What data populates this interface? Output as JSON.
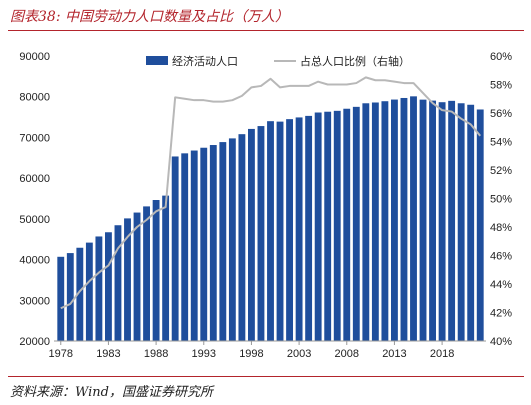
{
  "figure": {
    "title": "图表38:  中国劳动力人口数量及占比（万人）",
    "source": "资料来源：Wind，国盛证券研究所"
  },
  "colors": {
    "bar": "#1f4e9c",
    "line": "#b8b8b8",
    "accent": "#b3242c"
  },
  "chart_data": {
    "type": "bar",
    "x": [
      1978,
      1979,
      1980,
      1981,
      1982,
      1983,
      1984,
      1985,
      1986,
      1987,
      1988,
      1989,
      1990,
      1991,
      1992,
      1993,
      1994,
      1995,
      1996,
      1997,
      1998,
      1999,
      2000,
      2001,
      2002,
      2003,
      2004,
      2005,
      2006,
      2007,
      2008,
      2009,
      2010,
      2011,
      2012,
      2013,
      2014,
      2015,
      2016,
      2017,
      2018,
      2019,
      2020,
      2021,
      2022
    ],
    "x_tick_labels": [
      "1978",
      "1983",
      "1988",
      "1993",
      "1998",
      "2003",
      "2008",
      "2013",
      "2018"
    ],
    "x_tick_values": [
      1978,
      1983,
      1988,
      1993,
      1998,
      2003,
      2008,
      2013,
      2018
    ],
    "y_left_ticks": [
      "20000",
      "30000",
      "40000",
      "50000",
      "60000",
      "70000",
      "80000",
      "90000"
    ],
    "y_left_tick_values": [
      20000,
      30000,
      40000,
      50000,
      60000,
      70000,
      80000,
      90000
    ],
    "ylim_left": [
      20000,
      90000
    ],
    "y_right_ticks": [
      "40%",
      "42%",
      "44%",
      "46%",
      "48%",
      "50%",
      "52%",
      "54%",
      "56%",
      "58%",
      "60%"
    ],
    "y_right_tick_values": [
      40,
      42,
      44,
      46,
      48,
      50,
      52,
      54,
      56,
      58,
      60
    ],
    "ylim_right": [
      40,
      60
    ],
    "legend_position": "top-center",
    "grid": false,
    "series": [
      {
        "name": "经济活动人口",
        "kind": "bar",
        "axis": "left",
        "values": [
          40682,
          41592,
          42903,
          44165,
          45674,
          46707,
          48433,
          50112,
          51546,
          53060,
          54630,
          55707,
          65323,
          66091,
          66782,
          67468,
          68135,
          68855,
          69765,
          70800,
          72087,
          72791,
          73992,
          73884,
          74492,
          74911,
          75290,
          76120,
          76315,
          76531,
          77046,
          77510,
          78388,
          78579,
          78894,
          79300,
          79690,
          80091,
          79282,
          79042,
          78653,
          78985,
          78392,
          78024,
          76861
        ]
      },
      {
        "name": "占总人口比例（右轴）",
        "kind": "line",
        "axis": "right",
        "values": [
          42.3,
          42.6,
          43.5,
          44.2,
          44.8,
          45.3,
          46.5,
          47.3,
          48.0,
          48.5,
          49.1,
          49.4,
          57.1,
          57.0,
          56.9,
          56.9,
          56.8,
          56.8,
          56.9,
          57.2,
          57.8,
          57.9,
          58.4,
          57.8,
          57.9,
          57.9,
          57.9,
          58.2,
          58.0,
          58.0,
          58.0,
          58.1,
          58.5,
          58.3,
          58.3,
          58.2,
          58.1,
          58.1,
          57.4,
          56.7,
          56.2,
          56.1,
          55.6,
          55.2,
          54.4
        ]
      }
    ]
  }
}
